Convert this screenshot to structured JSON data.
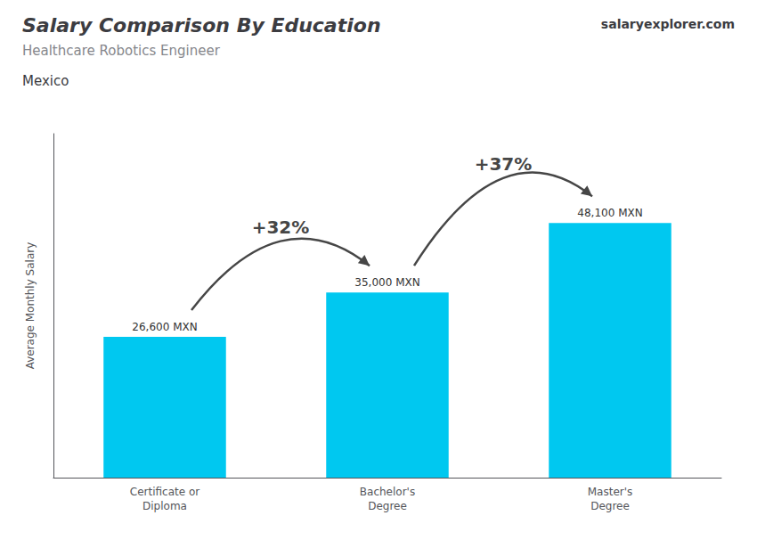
{
  "chart_data": {
    "type": "bar",
    "title": "Salary Comparison By Education",
    "subtitle": "Healthcare Robotics Engineer",
    "ylabel": "Average Monthly Salary",
    "annotations": [
      {
        "text": "Mexico"
      },
      {
        "text": "salaryexplorer.com"
      },
      {
        "text": "+32%",
        "from": "Certificate or\nDiploma",
        "to": "Bachelor's\nDegree"
      },
      {
        "text": "+37%",
        "from": "Bachelor's\nDegree",
        "to": "Master's\nDegree"
      }
    ],
    "categories": [
      "Certificate or\nDiploma",
      "Bachelor's\nDegree",
      "Master's\nDegree"
    ],
    "values": [
      26600,
      35000,
      48100
    ],
    "value_labels": [
      "26,600 MXN",
      "35,000 MXN",
      "48,100 MXN"
    ],
    "color": "#00c8f0",
    "ylim": [
      0,
      65000
    ],
    "grid": false,
    "tick_labels": "x"
  }
}
